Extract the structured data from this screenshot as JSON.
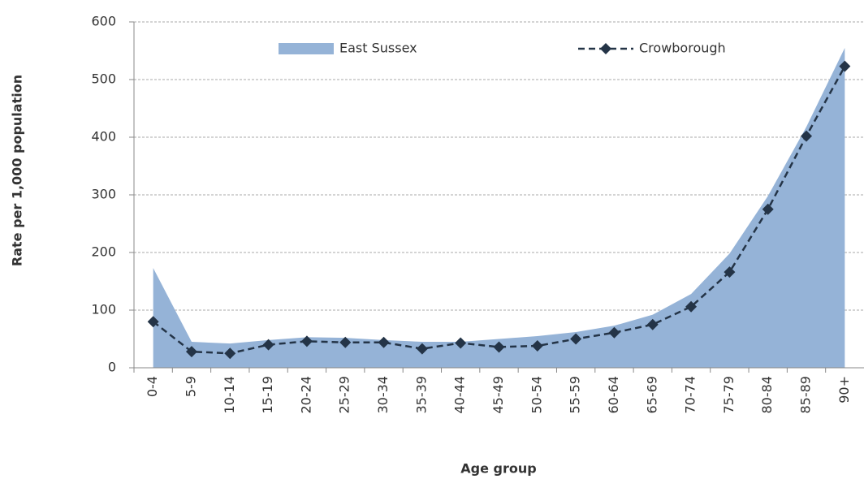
{
  "chart_data": {
    "type": "area-line",
    "x_label": "Age group",
    "y_label": "Rate per 1,000 population",
    "categories": [
      "0-4",
      "5-9",
      "10-14",
      "15-19",
      "20-24",
      "25-29",
      "30-34",
      "35-39",
      "40-44",
      "45-49",
      "50-54",
      "55-59",
      "60-64",
      "65-69",
      "70-74",
      "75-79",
      "80-84",
      "85-89",
      "90+"
    ],
    "series": [
      {
        "name": "East Sussex",
        "kind": "area",
        "color": "#95b3d7",
        "values": [
          173,
          45,
          42,
          48,
          53,
          52,
          48,
          45,
          45,
          50,
          55,
          62,
          73,
          92,
          128,
          198,
          298,
          418,
          555
        ]
      },
      {
        "name": "Crowborough",
        "kind": "line",
        "color": "#243447",
        "values": [
          80,
          28,
          25,
          40,
          46,
          44,
          44,
          33,
          43,
          36,
          38,
          50,
          61,
          75,
          106,
          166,
          275,
          402,
          523
        ]
      }
    ],
    "ylim": [
      0,
      600
    ],
    "yticks": [
      0,
      100,
      200,
      300,
      400,
      500,
      600
    ],
    "grid": true,
    "legend": "top"
  }
}
